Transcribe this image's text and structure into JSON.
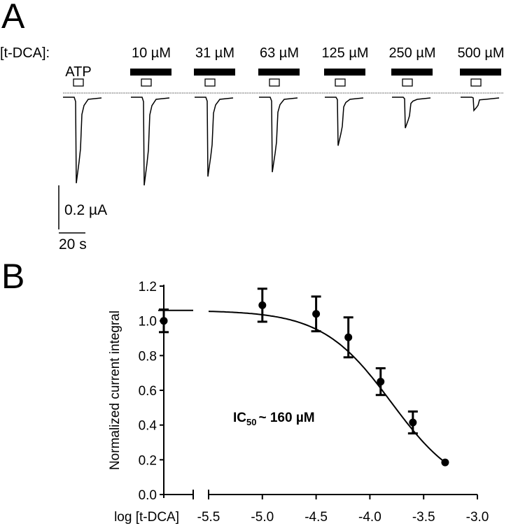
{
  "panel_a": {
    "panel_label": "A",
    "condition_label": "[t-DCA]:",
    "atp_label": "ATP",
    "concentrations": [
      "10 µM",
      "31 µM",
      "63 µM",
      "125 µM",
      "250 µM",
      "500 µM"
    ],
    "trace_peak_uA": [
      0.39,
      0.4,
      0.36,
      0.34,
      0.22,
      0.14,
      0.06
    ],
    "scale_current_label": "0.2 µA",
    "scale_time_label": "20 s",
    "scale_current_uA": 0.2
  },
  "chart_data": {
    "type": "scatter",
    "panel_label": "B",
    "xlabel": "log [t-DCA]",
    "ylabel": "Normalized current integral",
    "annotation": {
      "main": "IC",
      "sub": "50",
      "rest": "~ 160 µM"
    },
    "ylim": [
      0,
      1.2
    ],
    "yticks": [
      "0.0",
      "0.2",
      "0.4",
      "0.6",
      "0.8",
      "1.0",
      "1.2"
    ],
    "xlim": [
      -5.5,
      -3.0
    ],
    "xticks": [
      "-5.5",
      "-5.0",
      "-4.5",
      "-4.0",
      "-3.5",
      "-3.0"
    ],
    "control": {
      "y": 1.0,
      "err": 0.065
    },
    "points": [
      {
        "x": -5.0,
        "y": 1.09,
        "err": 0.095
      },
      {
        "x": -4.5,
        "y": 1.04,
        "err": 0.1
      },
      {
        "x": -4.2,
        "y": 0.905,
        "err": 0.115
      },
      {
        "x": -3.9,
        "y": 0.65,
        "err": 0.077
      },
      {
        "x": -3.6,
        "y": 0.415,
        "err": 0.063
      },
      {
        "x": -3.3,
        "y": 0.185,
        "err": 0
      }
    ],
    "fit": {
      "top": 1.06,
      "bottom": 0,
      "log_ic50": -3.8,
      "hill": 1.35
    },
    "grid": false
  }
}
